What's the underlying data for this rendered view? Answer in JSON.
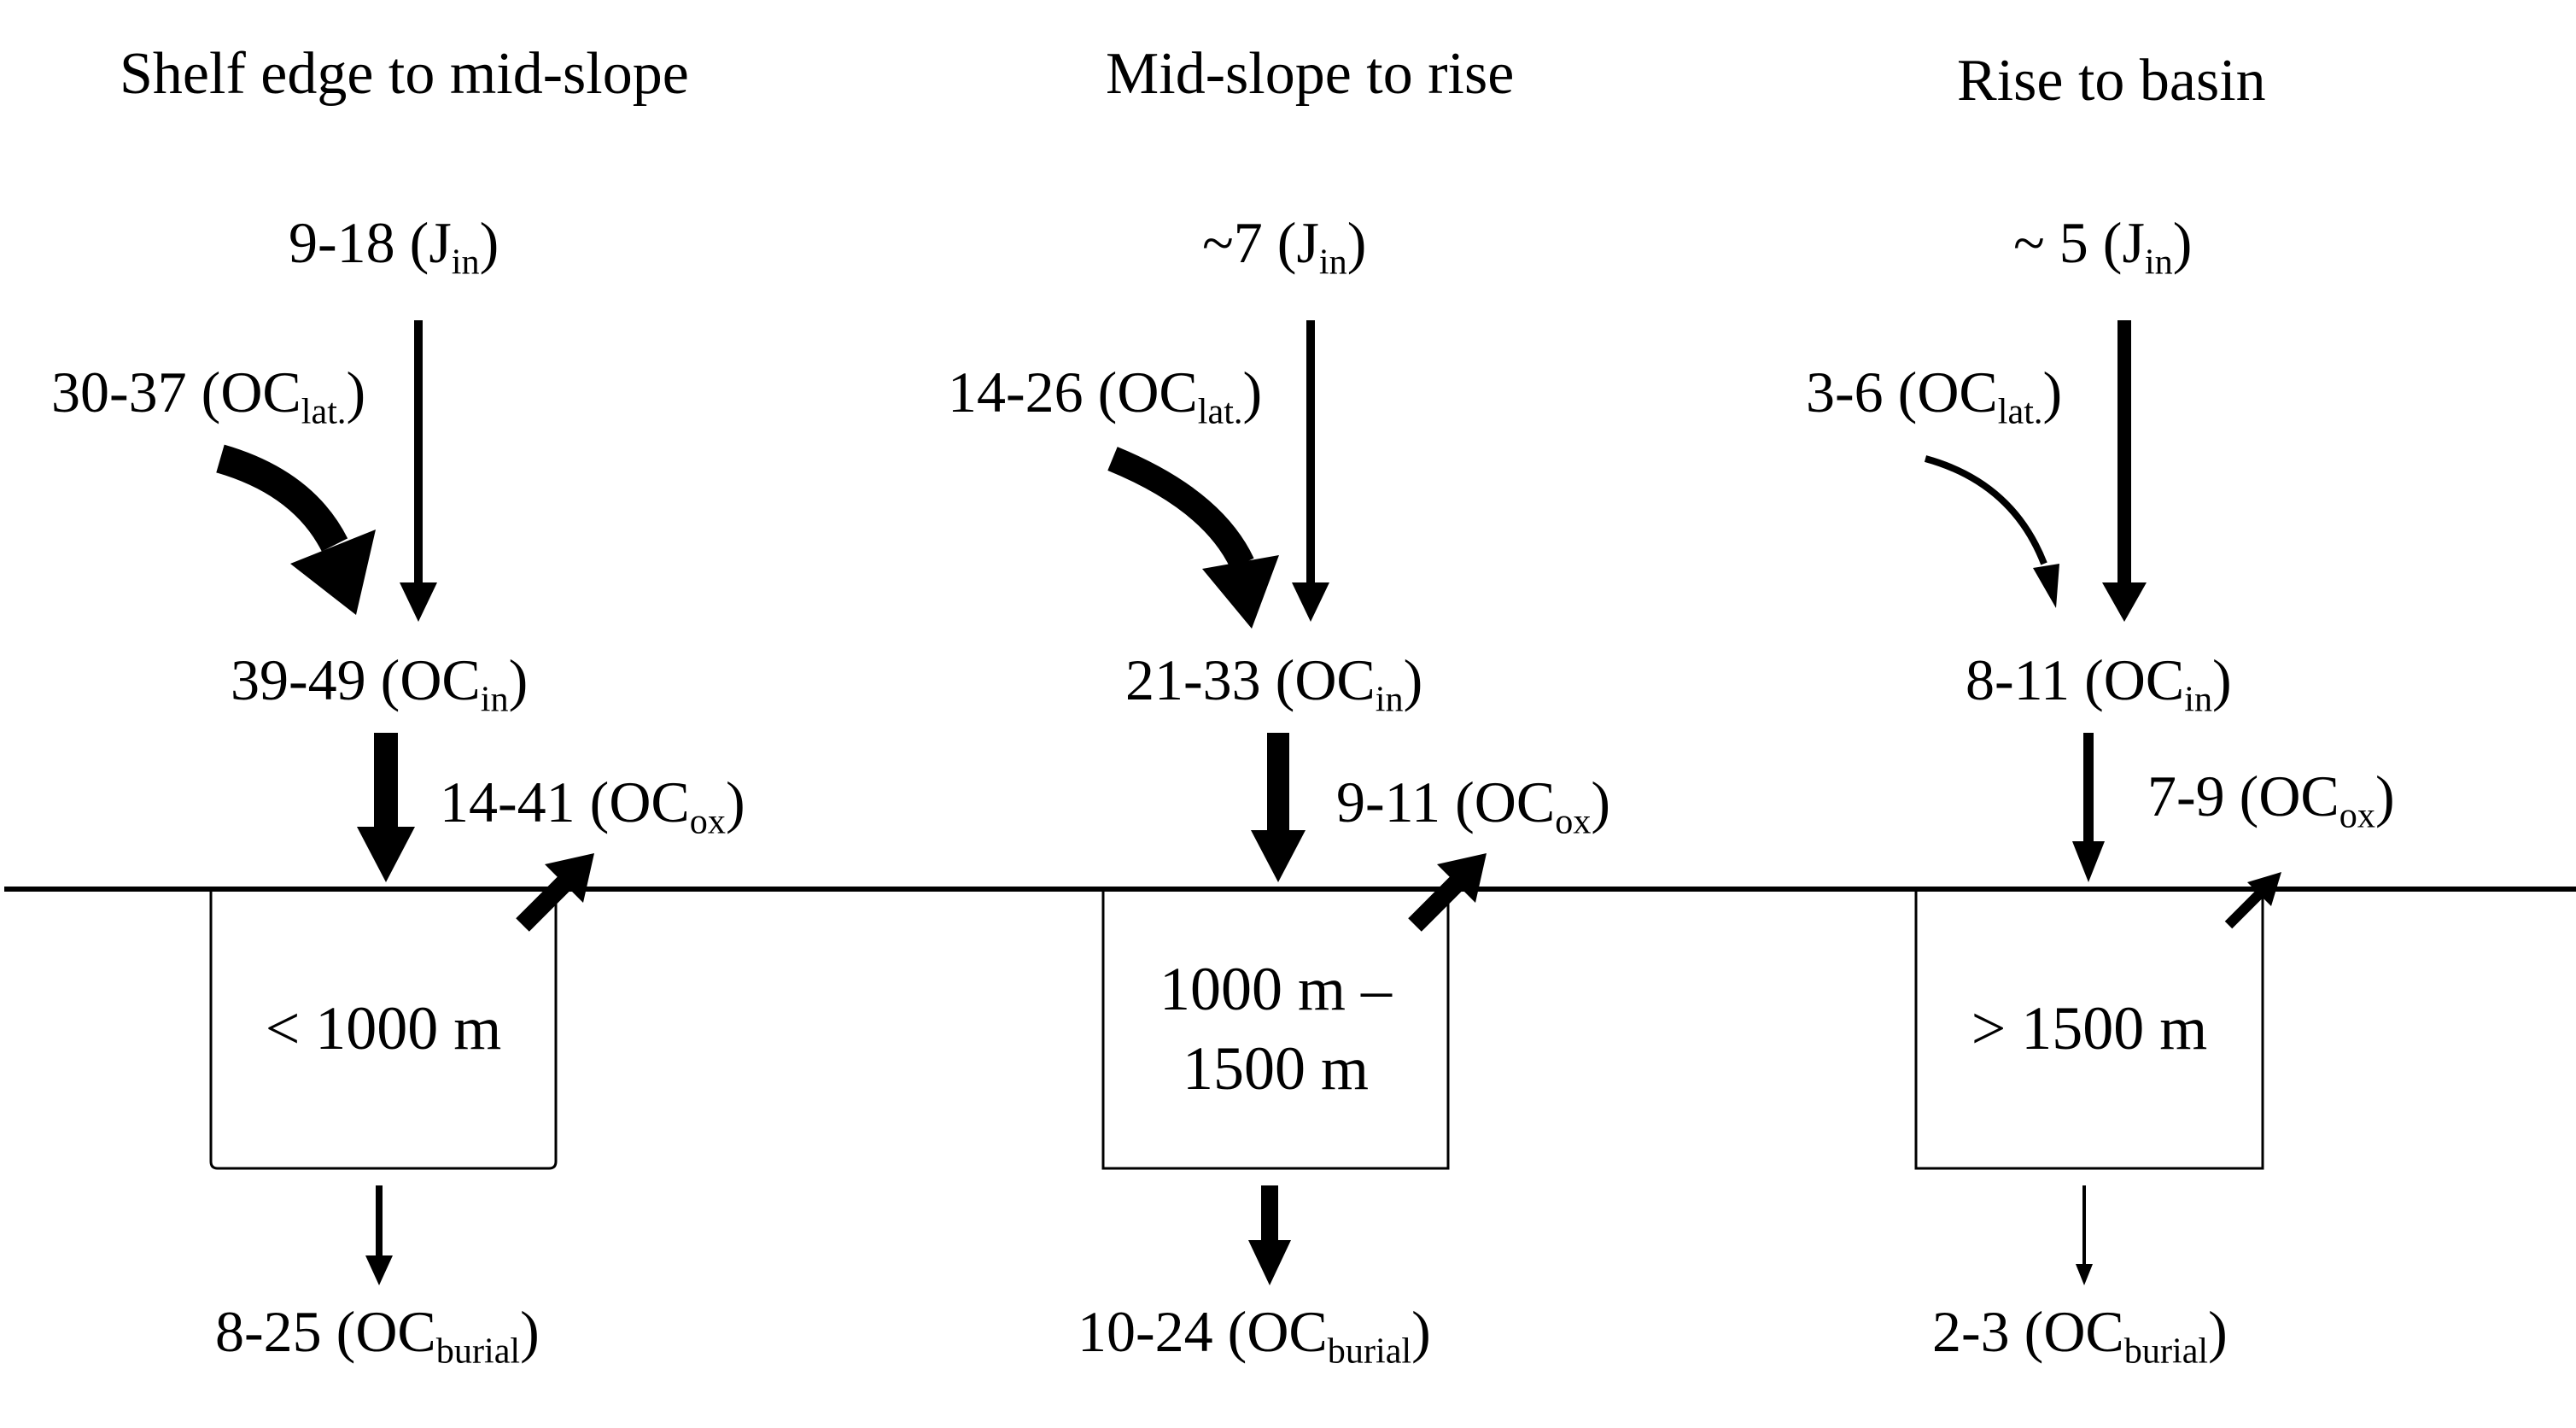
{
  "columns": [
    {
      "title": "Shelf edge to mid-slope",
      "j_in": {
        "value": "9-18",
        "sub": "in",
        "main": "J"
      },
      "oc_lat": {
        "value": "30-37",
        "sub": "lat.",
        "main": "OC"
      },
      "oc_in": {
        "value": "39-49",
        "sub": "in",
        "main": "OC"
      },
      "oc_ox": {
        "value": "14-41",
        "sub": "ox",
        "main": "OC"
      },
      "depth": [
        "< 1000 m"
      ],
      "oc_burial": {
        "value": "8-25",
        "sub": "burial",
        "main": "OC"
      }
    },
    {
      "title": "Mid-slope to rise",
      "j_in": {
        "value": "~7",
        "sub": "in",
        "main": "J"
      },
      "oc_lat": {
        "value": "14-26",
        "sub": "lat.",
        "main": "OC"
      },
      "oc_in": {
        "value": "21-33",
        "sub": "in",
        "main": "OC"
      },
      "oc_ox": {
        "value": "9-11",
        "sub": "ox",
        "main": "OC"
      },
      "depth": [
        "1000 m –",
        "1500 m"
      ],
      "oc_burial": {
        "value": "10-24",
        "sub": "burial",
        "main": "OC"
      }
    },
    {
      "title": "Rise to basin",
      "j_in": {
        "value": "~ 5",
        "sub": "in",
        "main": "J"
      },
      "oc_lat": {
        "value": "3-6",
        "sub": "lat.",
        "main": "OC"
      },
      "oc_in": {
        "value": "8-11",
        "sub": "in",
        "main": "OC"
      },
      "oc_ox": {
        "value": "7-9",
        "sub": "ox",
        "main": "OC"
      },
      "depth": [
        "> 1500 m"
      ],
      "oc_burial": {
        "value": "2-3",
        "sub": "burial",
        "main": "OC"
      }
    }
  ]
}
